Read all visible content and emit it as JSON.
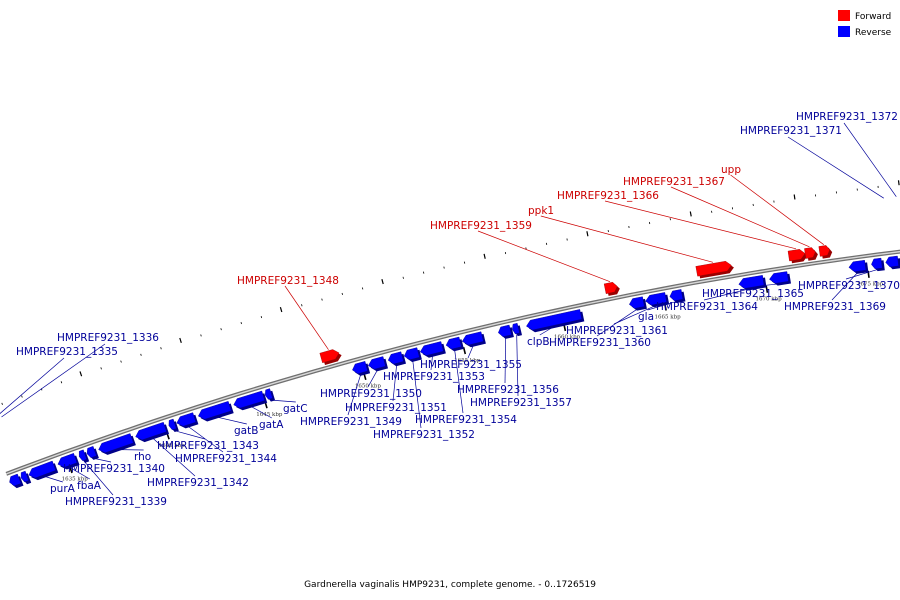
{
  "caption": "Gardnerella vaginalis HMP9231, complete genome. - 0..1726519",
  "legend": {
    "forward": {
      "label": "Forward",
      "color": "#ff0000"
    },
    "reverse": {
      "label": "Reverse",
      "color": "#0000ff"
    }
  },
  "colors": {
    "forward_label": "#cc0000",
    "reverse_label": "#000099",
    "backbone": "#8a8a8a"
  },
  "axis": {
    "start_kbp": 1632,
    "end_kbp": 1677
  },
  "ticks": [
    {
      "kbp": 1635,
      "label": "1635 kbp"
    },
    {
      "kbp": 1640,
      "label": "1640 kbp"
    },
    {
      "kbp": 1645,
      "label": "1645 kbp"
    },
    {
      "kbp": 1650,
      "label": "1650 kbp"
    },
    {
      "kbp": 1655,
      "label": "1655 kbp"
    },
    {
      "kbp": 1660,
      "label": "1660 kbp"
    },
    {
      "kbp": 1665,
      "label": "1665 kbp"
    },
    {
      "kbp": 1670,
      "label": "1670 kbp"
    },
    {
      "kbp": 1675,
      "label": "1675 kbp"
    }
  ],
  "forward_genes": [
    {
      "name": "HMPREF9231_1348",
      "start_kbp": 1648.2,
      "end_kbp": 1649.1
    },
    {
      "name": "HMPREF9231_1359",
      "start_kbp": 1662.3,
      "end_kbp": 1662.9
    },
    {
      "name": "ppk1",
      "start_kbp": 1666.8,
      "end_kbp": 1668.5
    },
    {
      "name": "HMPREF9231_1366",
      "start_kbp": 1671.3,
      "end_kbp": 1672.1
    },
    {
      "name": "HMPREF9231_1367",
      "start_kbp": 1672.1,
      "end_kbp": 1672.6
    },
    {
      "name": "upp",
      "start_kbp": 1672.8,
      "end_kbp": 1673.3
    }
  ],
  "reverse_genes": [
    {
      "name": "HMPREF9231_1335",
      "start_kbp": 1632.0,
      "end_kbp": 1632.5
    },
    {
      "name": "HMPREF9231_1336",
      "start_kbp": 1632.6,
      "end_kbp": 1632.9
    },
    {
      "name": "purA",
      "start_kbp": 1633.0,
      "end_kbp": 1634.3
    },
    {
      "name": "fbaA",
      "start_kbp": 1634.5,
      "end_kbp": 1635.4
    },
    {
      "name": "HMPREF9231_1339",
      "start_kbp": 1635.6,
      "end_kbp": 1635.9
    },
    {
      "name": "HMPREF9231_1340",
      "start_kbp": 1636.0,
      "end_kbp": 1636.4
    },
    {
      "name": "rho",
      "start_kbp": 1636.6,
      "end_kbp": 1638.3
    },
    {
      "name": "HMPREF9231_1342",
      "start_kbp": 1638.5,
      "end_kbp": 1640.0
    },
    {
      "name": "HMPREF9231_1343",
      "start_kbp": 1640.2,
      "end_kbp": 1640.5
    },
    {
      "name": "HMPREF9231_1344",
      "start_kbp": 1640.6,
      "end_kbp": 1641.5
    },
    {
      "name": "gatB",
      "start_kbp": 1641.7,
      "end_kbp": 1643.3
    },
    {
      "name": "gatA",
      "start_kbp": 1643.5,
      "end_kbp": 1645.0
    },
    {
      "name": "gatC",
      "start_kbp": 1645.1,
      "end_kbp": 1645.4
    },
    {
      "name": "HMPREF9231_1349",
      "start_kbp": 1649.5,
      "end_kbp": 1650.2
    },
    {
      "name": "HMPREF9231_1350",
      "start_kbp": 1650.3,
      "end_kbp": 1651.1
    },
    {
      "name": "HMPREF9231_1351",
      "start_kbp": 1651.3,
      "end_kbp": 1652.0
    },
    {
      "name": "HMPREF9231_1352",
      "start_kbp": 1652.1,
      "end_kbp": 1652.8
    },
    {
      "name": "HMPREF9231_1353",
      "start_kbp": 1652.9,
      "end_kbp": 1654.0
    },
    {
      "name": "HMPREF9231_1354",
      "start_kbp": 1654.2,
      "end_kbp": 1654.9
    },
    {
      "name": "HMPREF9231_1355",
      "start_kbp": 1655.0,
      "end_kbp": 1656.0
    },
    {
      "name": "HMPREF9231_1356",
      "start_kbp": 1656.8,
      "end_kbp": 1657.4
    },
    {
      "name": "HMPREF9231_1357",
      "start_kbp": 1657.5,
      "end_kbp": 1657.8
    },
    {
      "name": "clpB",
      "start_kbp": 1658.2,
      "end_kbp": 1660.9
    },
    {
      "name": "HMPREF9231_1360",
      "start_kbp": 1663.3,
      "end_kbp": 1664.0
    },
    {
      "name": "HMPREF9231_1361",
      "start_kbp": 1664.1,
      "end_kbp": 1665.1
    },
    {
      "name": "gla",
      "start_kbp": 1665.3,
      "end_kbp": 1665.9
    },
    {
      "name": "HMPREF9231_1364",
      "start_kbp": 1668.7,
      "end_kbp": 1669.9
    },
    {
      "name": "HMPREF9231_1365",
      "start_kbp": 1670.2,
      "end_kbp": 1671.1
    },
    {
      "name": "HMPREF9231_1369",
      "start_kbp": 1674.1,
      "end_kbp": 1674.9
    },
    {
      "name": "HMPREF9231_1370",
      "start_kbp": 1675.2,
      "end_kbp": 1675.7
    },
    {
      "name": "HMPREF9231_1371",
      "start_kbp": 1675.9,
      "end_kbp": 1676.5
    },
    {
      "name": "HMPREF9231_1372",
      "start_kbp": 1676.6,
      "end_kbp": 1677.0
    }
  ]
}
